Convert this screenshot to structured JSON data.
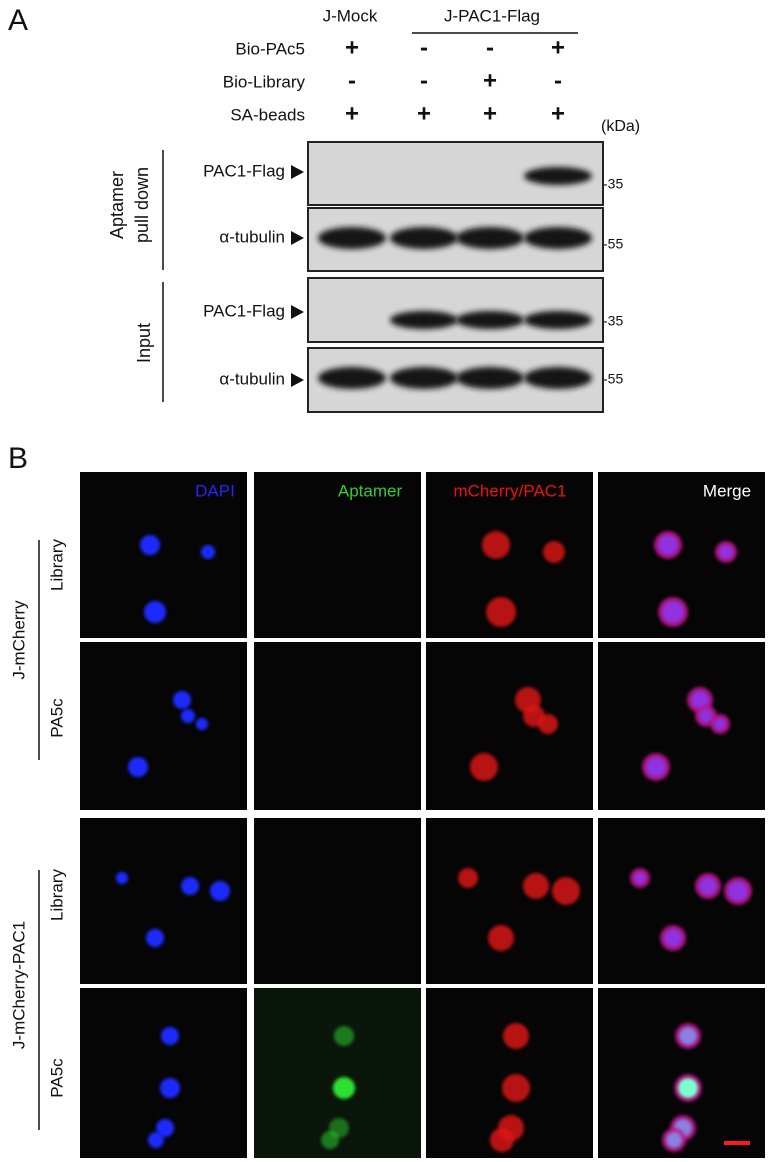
{
  "panel_a": {
    "label": "A",
    "groups": [
      "J-Mock",
      "J-PAC1-Flag"
    ],
    "conditions": [
      {
        "name": "Bio-PAc5",
        "signs": [
          "+",
          "-",
          "-",
          "+"
        ]
      },
      {
        "name": "Bio-Library",
        "signs": [
          "-",
          "-",
          "+",
          "-"
        ]
      },
      {
        "name": "SA-beads",
        "signs": [
          "+",
          "+",
          "+",
          "+"
        ]
      }
    ],
    "unit": "(kDa)",
    "sections": [
      {
        "label_lines": [
          "Aptamer",
          "pull down"
        ],
        "blots": [
          {
            "label": "PAC1-Flag",
            "marker": "-35"
          },
          {
            "label": "α-tubulin",
            "marker": "-55"
          }
        ]
      },
      {
        "label_lines": [
          "Input"
        ],
        "blots": [
          {
            "label": "PAC1-Flag",
            "marker": "-35"
          },
          {
            "label": "α-tubulin",
            "marker": "-55"
          }
        ]
      }
    ]
  },
  "panel_b": {
    "label": "B",
    "channels": [
      "DAPI",
      "Aptamer",
      "mCherry/PAC1",
      "Merge"
    ],
    "groups": [
      {
        "name": "J-mCherry",
        "rows": [
          "Library",
          "PA5c"
        ]
      },
      {
        "name": "J-mCherry-PAC1",
        "rows": [
          "Library",
          "PA5c"
        ]
      }
    ]
  }
}
